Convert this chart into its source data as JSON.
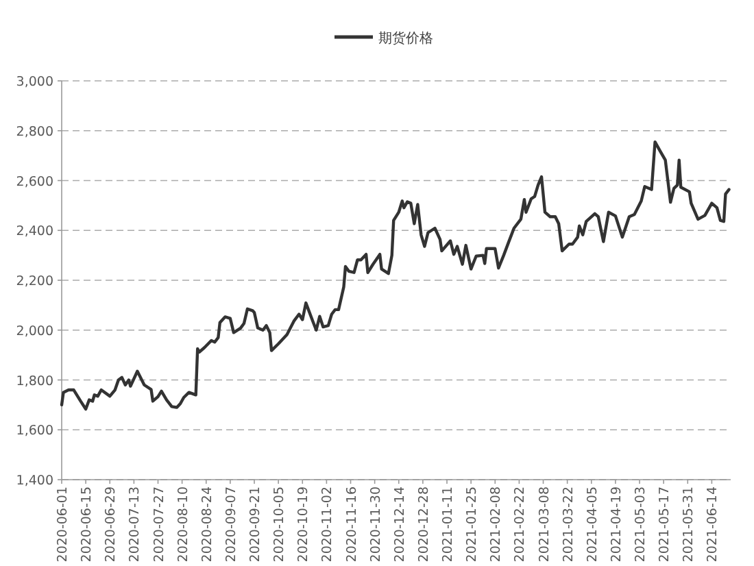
{
  "chart_data": {
    "type": "line",
    "legend": "top",
    "grid": "y",
    "marker": "none",
    "line_style": "solid",
    "xlim": [
      "2020-06-01",
      "2021-06-25"
    ],
    "ylim": [
      1400,
      3000
    ],
    "xticks": [
      "2020-06-01",
      "2020-06-15",
      "2020-06-29",
      "2020-07-13",
      "2020-07-27",
      "2020-08-10",
      "2020-08-24",
      "2020-09-07",
      "2020-09-21",
      "2020-10-05",
      "2020-10-19",
      "2020-11-02",
      "2020-11-16",
      "2020-11-30",
      "2020-12-14",
      "2020-12-28",
      "2021-01-11",
      "2021-01-25",
      "2021-02-08",
      "2021-02-22",
      "2021-03-08",
      "2021-03-22",
      "2021-04-05",
      "2021-04-19",
      "2021-05-03",
      "2021-05-17",
      "2021-05-31",
      "2021-06-14"
    ],
    "yticks": [
      {
        "value": 1400,
        "label": "1,400"
      },
      {
        "value": 1600,
        "label": "1,600"
      },
      {
        "value": 1800,
        "label": "1,800"
      },
      {
        "value": 2000,
        "label": "2,000"
      },
      {
        "value": 2200,
        "label": "2,200"
      },
      {
        "value": 2400,
        "label": "2,400"
      },
      {
        "value": 2600,
        "label": "2,600"
      },
      {
        "value": 2800,
        "label": "2,800"
      },
      {
        "value": 3000,
        "label": "3,000"
      }
    ],
    "x": [
      "2020-06-01",
      "2020-06-02",
      "2020-06-05",
      "2020-06-08",
      "2020-06-12",
      "2020-06-15",
      "2020-06-17",
      "2020-06-19",
      "2020-06-20",
      "2020-06-22",
      "2020-06-24",
      "2020-06-29",
      "2020-07-02",
      "2020-07-04",
      "2020-07-06",
      "2020-07-08",
      "2020-07-10",
      "2020-07-11",
      "2020-07-15",
      "2020-07-19",
      "2020-07-23",
      "2020-07-24",
      "2020-07-27",
      "2020-07-29",
      "2020-08-01",
      "2020-08-04",
      "2020-08-07",
      "2020-08-09",
      "2020-08-11",
      "2020-08-14",
      "2020-08-18",
      "2020-08-19",
      "2020-08-20",
      "2020-08-23",
      "2020-08-27",
      "2020-08-29",
      "2020-08-31",
      "2020-09-01",
      "2020-09-04",
      "2020-09-07",
      "2020-09-09",
      "2020-09-13",
      "2020-09-15",
      "2020-09-17",
      "2020-09-20",
      "2020-09-21",
      "2020-09-23",
      "2020-09-26",
      "2020-09-28",
      "2020-09-30",
      "2020-10-01",
      "2020-10-05",
      "2020-10-10",
      "2020-10-14",
      "2020-10-17",
      "2020-10-19",
      "2020-10-21",
      "2020-10-25",
      "2020-10-27",
      "2020-10-29",
      "2020-10-31",
      "2020-11-03",
      "2020-11-05",
      "2020-11-07",
      "2020-11-09",
      "2020-11-12",
      "2020-11-13",
      "2020-11-15",
      "2020-11-18",
      "2020-11-20",
      "2020-11-22",
      "2020-11-25",
      "2020-11-26",
      "2020-11-29",
      "2020-12-03",
      "2020-12-04",
      "2020-12-08",
      "2020-12-10",
      "2020-12-11",
      "2020-12-14",
      "2020-12-16",
      "2020-12-17",
      "2020-12-19",
      "2020-12-21",
      "2020-12-23",
      "2020-12-25",
      "2020-12-27",
      "2020-12-29",
      "2020-12-31",
      "2021-01-04",
      "2021-01-07",
      "2021-01-08",
      "2021-01-13",
      "2021-01-15",
      "2021-01-17",
      "2021-01-20",
      "2021-01-22",
      "2021-01-25",
      "2021-01-28",
      "2021-02-01",
      "2021-02-02",
      "2021-02-03",
      "2021-02-08",
      "2021-02-10",
      "2021-02-13",
      "2021-02-16",
      "2021-02-19",
      "2021-02-23",
      "2021-02-25",
      "2021-02-26",
      "2021-03-01",
      "2021-03-03",
      "2021-03-05",
      "2021-03-07",
      "2021-03-09",
      "2021-03-12",
      "2021-03-15",
      "2021-03-17",
      "2021-03-19",
      "2021-03-23",
      "2021-03-25",
      "2021-03-28",
      "2021-03-29",
      "2021-03-31",
      "2021-04-02",
      "2021-04-07",
      "2021-04-09",
      "2021-04-12",
      "2021-04-15",
      "2021-04-19",
      "2021-04-23",
      "2021-04-27",
      "2021-04-30",
      "2021-05-04",
      "2021-05-06",
      "2021-05-10",
      "2021-05-12",
      "2021-05-15",
      "2021-05-18",
      "2021-05-21",
      "2021-05-23",
      "2021-05-25",
      "2021-05-26",
      "2021-05-27",
      "2021-06-01",
      "2021-06-02",
      "2021-06-06",
      "2021-06-10",
      "2021-06-14",
      "2021-06-17",
      "2021-06-19",
      "2021-06-21",
      "2021-06-22",
      "2021-06-24"
    ],
    "series": [
      {
        "name": "期货价格",
        "color": "#333333",
        "values": [
          1700,
          1750,
          1760,
          1760,
          1715,
          1683,
          1720,
          1715,
          1740,
          1735,
          1760,
          1735,
          1760,
          1800,
          1810,
          1780,
          1800,
          1775,
          1835,
          1780,
          1762,
          1715,
          1733,
          1755,
          1720,
          1693,
          1690,
          1705,
          1730,
          1750,
          1740,
          1925,
          1912,
          1930,
          1958,
          1952,
          1970,
          2030,
          2053,
          2047,
          1990,
          2008,
          2027,
          2085,
          2078,
          2071,
          2009,
          2000,
          2018,
          1990,
          1918,
          1945,
          1982,
          2036,
          2064,
          2042,
          2109,
          2036,
          2000,
          2055,
          2013,
          2018,
          2064,
          2082,
          2082,
          2173,
          2255,
          2236,
          2231,
          2282,
          2282,
          2304,
          2231,
          2264,
          2304,
          2245,
          2227,
          2300,
          2440,
          2473,
          2518,
          2491,
          2515,
          2509,
          2427,
          2504,
          2382,
          2336,
          2391,
          2409,
          2364,
          2318,
          2358,
          2304,
          2336,
          2264,
          2340,
          2245,
          2297,
          2300,
          2267,
          2327,
          2327,
          2249,
          2300,
          2355,
          2409,
          2445,
          2524,
          2473,
          2527,
          2536,
          2582,
          2615,
          2473,
          2455,
          2455,
          2427,
          2318,
          2345,
          2345,
          2373,
          2418,
          2382,
          2436,
          2467,
          2455,
          2355,
          2473,
          2458,
          2373,
          2455,
          2464,
          2518,
          2576,
          2564,
          2755,
          2718,
          2682,
          2513,
          2569,
          2582,
          2682,
          2573,
          2555,
          2509,
          2445,
          2460,
          2509,
          2491,
          2440,
          2436,
          2546,
          2564
        ]
      }
    ]
  }
}
